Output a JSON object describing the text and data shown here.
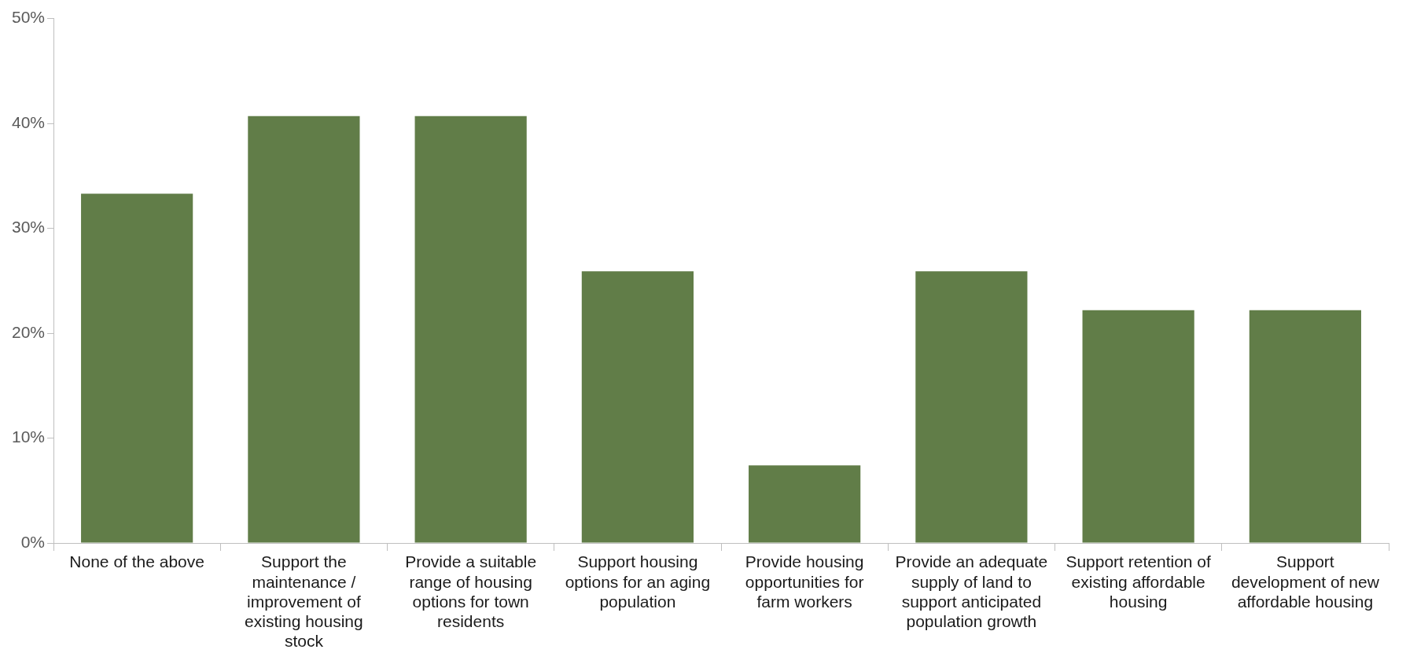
{
  "chart_data": {
    "type": "bar",
    "categories": [
      "None of the above",
      "Support the maintenance / improvement of existing housing stock",
      "Provide a suitable range of housing options for town residents",
      "Support housing options for an aging population",
      "Provide housing opportunities for farm workers",
      "Provide an adequate supply of land to support anticipated population growth",
      "Support retention of existing affordable housing",
      "Support development of new affordable housing"
    ],
    "values": [
      33.3,
      40.7,
      40.7,
      25.9,
      7.4,
      25.9,
      22.2,
      22.2
    ],
    "color": "#617d48",
    "ylim": [
      0,
      50
    ],
    "yticks": [
      {
        "value": 0,
        "label": "0%"
      },
      {
        "value": 10,
        "label": "10%"
      },
      {
        "value": 20,
        "label": "20%"
      },
      {
        "value": 30,
        "label": "30%"
      },
      {
        "value": 40,
        "label": "40%"
      },
      {
        "value": 50,
        "label": "50%"
      }
    ]
  }
}
